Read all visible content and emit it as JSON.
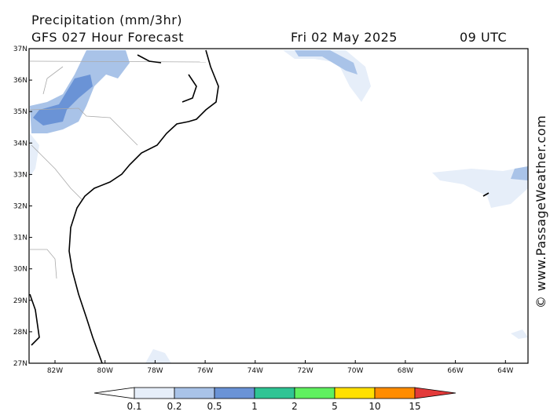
{
  "header": {
    "title": "Precipitation (mm/3hr)",
    "subtitle": "GFS 027 Hour Forecast",
    "date": "Fri 02 May 2025",
    "time": "09 UTC"
  },
  "map": {
    "lat_labels": [
      "37N",
      "36N",
      "35N",
      "34N",
      "33N",
      "32N",
      "31N",
      "30N",
      "29N",
      "28N",
      "27N"
    ],
    "lon_labels": [
      "82W",
      "80W",
      "78W",
      "76W",
      "74W",
      "72W",
      "70W",
      "68W",
      "66W",
      "64W"
    ]
  },
  "legend": {
    "labels": [
      "0.1",
      "0.2",
      "0.5",
      "1",
      "2",
      "5",
      "10",
      "15"
    ],
    "colors": [
      "#ffffff",
      "#e6eef9",
      "#a9c3e8",
      "#6a93d6",
      "#2fc494",
      "#5ff05f",
      "#ffe000",
      "#ff8c00",
      "#e33a3a"
    ]
  },
  "watermark": "© www.PassageWeather.com"
}
